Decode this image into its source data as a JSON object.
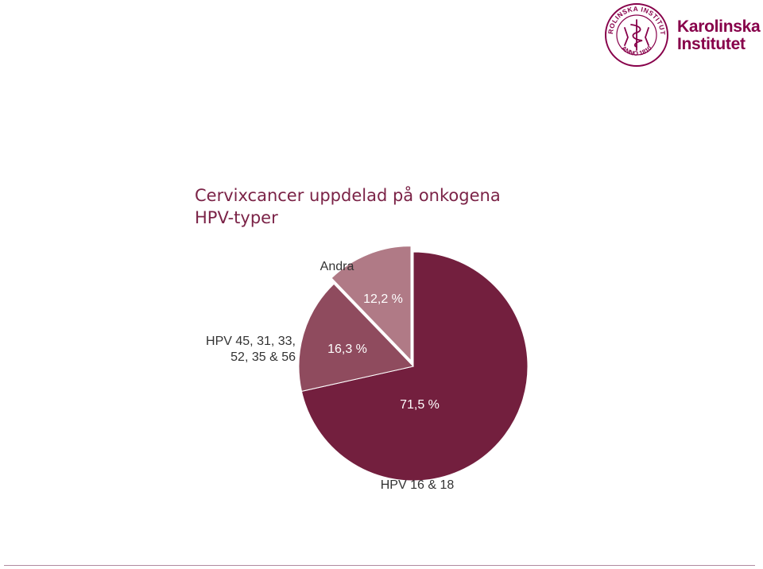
{
  "logo": {
    "seal_text": "KAROLINSKA INSTITUTET",
    "seal_year": "ANNO 1810",
    "name_line1": "Karolinska",
    "name_line2": "Institutet",
    "brand_color": "#87004a"
  },
  "title": {
    "line1": "Cervixcancer uppdelad på onkogena",
    "line2": "HPV-typer",
    "color": "#7b2347"
  },
  "chart_data": {
    "type": "pie",
    "slices": [
      {
        "category": "HPV 16 & 18",
        "value": 71.5,
        "value_label": "71,5 %",
        "color": "#731f3e",
        "category_lines": [
          "HPV 16 & 18"
        ]
      },
      {
        "category": "HPV 45, 31, 33, 52, 35 & 56",
        "value": 16.3,
        "value_label": "16,3 %",
        "color": "#8f4b5e",
        "category_lines": [
          "HPV 45, 31, 33,",
          "52, 35 & 56"
        ]
      },
      {
        "category": "Andra",
        "value": 12.2,
        "value_label": "12,2 %",
        "color": "#b07a86",
        "category_lines": [
          "Andra"
        ]
      }
    ],
    "start_angle_deg": 0,
    "direction": "clockwise",
    "exploded_slice": "Andra"
  }
}
